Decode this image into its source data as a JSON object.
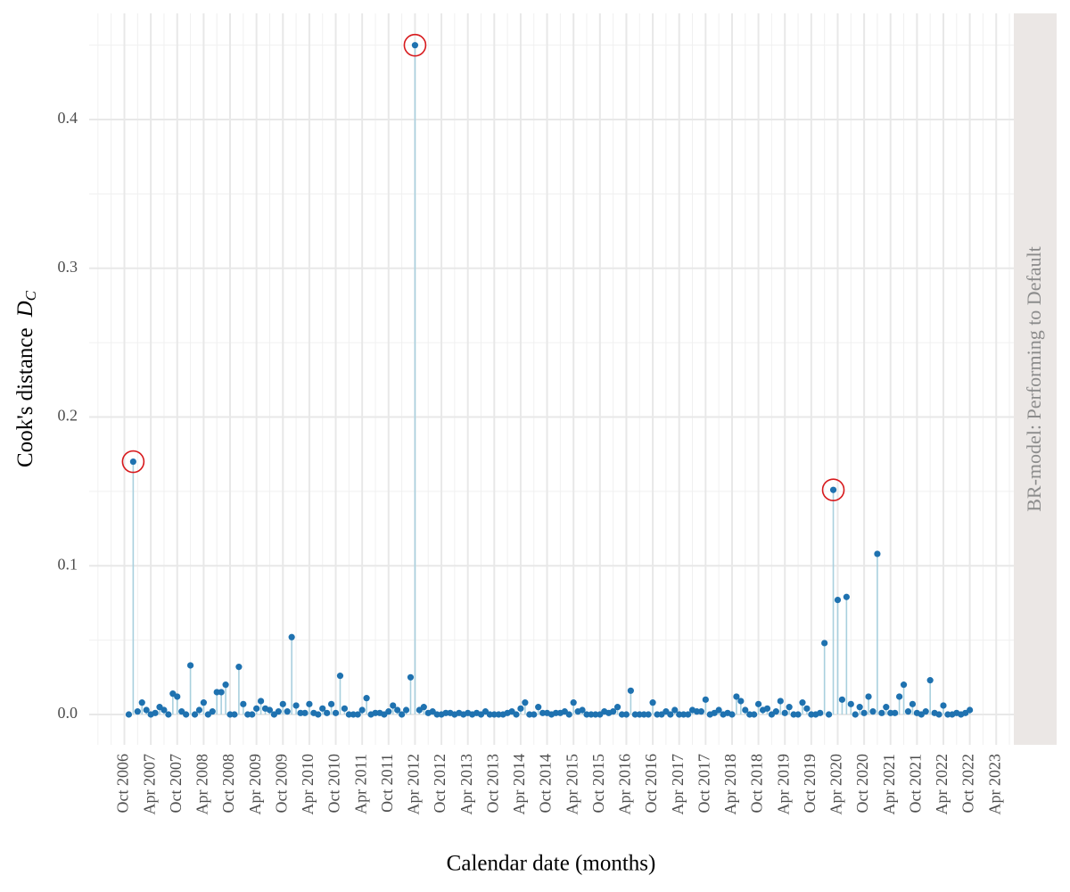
{
  "chart_data": {
    "type": "lollipop",
    "y_label": "Cook's distance",
    "y_label_symbol": "D",
    "y_label_subscript": "C",
    "x_label": "Calendar date (months)",
    "facet_label": "BR-model: Performing to Default",
    "point_color": "#1f72b0",
    "stem_color": "#a9d0de",
    "highlight_color": "#d7191c",
    "highlight_indices": [
      1,
      65,
      160
    ],
    "grid": true,
    "x": [
      "2006-11",
      "2006-12",
      "2007-01",
      "2007-02",
      "2007-03",
      "2007-04",
      "2007-05",
      "2007-06",
      "2007-07",
      "2007-08",
      "2007-09",
      "2007-10",
      "2007-11",
      "2007-12",
      "2008-01",
      "2008-02",
      "2008-03",
      "2008-04",
      "2008-05",
      "2008-06",
      "2008-07",
      "2008-08",
      "2008-09",
      "2008-10",
      "2008-11",
      "2008-12",
      "2009-01",
      "2009-02",
      "2009-03",
      "2009-04",
      "2009-05",
      "2009-06",
      "2009-07",
      "2009-08",
      "2009-09",
      "2009-10",
      "2009-11",
      "2009-12",
      "2010-01",
      "2010-02",
      "2010-03",
      "2010-04",
      "2010-05",
      "2010-06",
      "2010-07",
      "2010-08",
      "2010-09",
      "2010-10",
      "2010-11",
      "2010-12",
      "2011-01",
      "2011-02",
      "2011-03",
      "2011-04",
      "2011-05",
      "2011-06",
      "2011-07",
      "2011-08",
      "2011-09",
      "2011-10",
      "2011-11",
      "2011-12",
      "2012-01",
      "2012-02",
      "2012-03",
      "2012-04",
      "2012-05",
      "2012-06",
      "2012-07",
      "2012-08",
      "2012-09",
      "2012-10",
      "2012-11",
      "2012-12",
      "2013-01",
      "2013-02",
      "2013-03",
      "2013-04",
      "2013-05",
      "2013-06",
      "2013-07",
      "2013-08",
      "2013-09",
      "2013-10",
      "2013-11",
      "2013-12",
      "2014-01",
      "2014-02",
      "2014-03",
      "2014-04",
      "2014-05",
      "2014-06",
      "2014-07",
      "2014-08",
      "2014-09",
      "2014-10",
      "2014-11",
      "2014-12",
      "2015-01",
      "2015-02",
      "2015-03",
      "2015-04",
      "2015-05",
      "2015-06",
      "2015-07",
      "2015-08",
      "2015-09",
      "2015-10",
      "2015-11",
      "2015-12",
      "2016-01",
      "2016-02",
      "2016-03",
      "2016-04",
      "2016-05",
      "2016-06",
      "2016-07",
      "2016-08",
      "2016-09",
      "2016-10",
      "2016-11",
      "2016-12",
      "2017-01",
      "2017-02",
      "2017-03",
      "2017-04",
      "2017-05",
      "2017-06",
      "2017-07",
      "2017-08",
      "2017-09",
      "2017-10",
      "2017-11",
      "2017-12",
      "2018-01",
      "2018-02",
      "2018-03",
      "2018-04",
      "2018-05",
      "2018-06",
      "2018-07",
      "2018-08",
      "2018-09",
      "2018-10",
      "2018-11",
      "2018-12",
      "2019-01",
      "2019-02",
      "2019-03",
      "2019-04",
      "2019-05",
      "2019-06",
      "2019-07",
      "2019-08",
      "2019-09",
      "2019-10",
      "2019-11",
      "2019-12",
      "2020-01",
      "2020-02",
      "2020-03",
      "2020-04",
      "2020-05",
      "2020-06",
      "2020-07",
      "2020-08",
      "2020-09",
      "2020-10",
      "2020-11",
      "2020-12",
      "2021-01",
      "2021-02",
      "2021-03",
      "2021-04",
      "2021-05",
      "2021-06",
      "2021-07",
      "2021-08",
      "2021-09",
      "2021-10",
      "2021-11",
      "2021-12",
      "2022-01",
      "2022-02",
      "2022-03",
      "2022-04",
      "2022-05",
      "2022-06",
      "2022-07",
      "2022-08",
      "2022-09",
      "2022-10"
    ],
    "values": [
      0.0,
      0.17,
      0.002,
      0.008,
      0.003,
      0.0,
      0.001,
      0.005,
      0.003,
      0.0,
      0.014,
      0.012,
      0.002,
      0.0,
      0.033,
      0.0,
      0.003,
      0.008,
      0.0,
      0.002,
      0.015,
      0.015,
      0.02,
      0.0,
      0.0,
      0.032,
      0.007,
      0.0,
      0.0,
      0.004,
      0.009,
      0.004,
      0.003,
      0.0,
      0.002,
      0.007,
      0.002,
      0.052,
      0.006,
      0.001,
      0.001,
      0.007,
      0.001,
      0.0,
      0.004,
      0.001,
      0.007,
      0.001,
      0.026,
      0.004,
      0.0,
      0.0,
      0.0,
      0.003,
      0.011,
      0.0,
      0.001,
      0.001,
      0.0,
      0.002,
      0.006,
      0.003,
      0.0,
      0.003,
      0.025,
      0.45,
      0.003,
      0.005,
      0.001,
      0.002,
      0.0,
      0.0,
      0.001,
      0.001,
      0.0,
      0.001,
      0.0,
      0.001,
      0.0,
      0.001,
      0.0,
      0.002,
      0.0,
      0.0,
      0.0,
      0.0,
      0.001,
      0.002,
      0.0,
      0.004,
      0.008,
      0.0,
      0.0,
      0.005,
      0.001,
      0.001,
      0.0,
      0.001,
      0.001,
      0.002,
      0.0,
      0.008,
      0.002,
      0.003,
      0.0,
      0.0,
      0.0,
      0.0,
      0.002,
      0.001,
      0.002,
      0.005,
      0.0,
      0.0,
      0.016,
      0.0,
      0.0,
      0.0,
      0.0,
      0.008,
      0.0,
      0.0,
      0.002,
      0.0,
      0.003,
      0.0,
      0.0,
      0.0,
      0.003,
      0.002,
      0.002,
      0.01,
      0.0,
      0.001,
      0.003,
      0.0,
      0.001,
      0.0,
      0.012,
      0.009,
      0.003,
      0.0,
      0.0,
      0.007,
      0.003,
      0.004,
      0.0,
      0.002,
      0.009,
      0.001,
      0.005,
      0.0,
      0.0,
      0.008,
      0.004,
      0.0,
      0.0,
      0.001,
      0.048,
      0.0,
      0.151,
      0.077,
      0.01,
      0.079,
      0.007,
      0.0,
      0.005,
      0.001,
      0.012,
      0.002,
      0.108,
      0.001,
      0.005,
      0.001,
      0.001,
      0.012,
      0.02,
      0.002,
      0.007,
      0.001,
      0.0,
      0.002,
      0.023,
      0.001,
      0.0,
      0.006,
      0.0,
      0.0,
      0.001,
      0.0,
      0.001,
      0.003
    ],
    "xlim": [
      "2006-02",
      "2023-08"
    ],
    "xticks": [
      {
        "value": "2006-10",
        "label": "Oct 2006"
      },
      {
        "value": "2007-04",
        "label": "Apr 2007"
      },
      {
        "value": "2007-10",
        "label": "Oct 2007"
      },
      {
        "value": "2008-04",
        "label": "Apr 2008"
      },
      {
        "value": "2008-10",
        "label": "Oct 2008"
      },
      {
        "value": "2009-04",
        "label": "Apr 2009"
      },
      {
        "value": "2009-10",
        "label": "Oct 2009"
      },
      {
        "value": "2010-04",
        "label": "Apr 2010"
      },
      {
        "value": "2010-10",
        "label": "Oct 2010"
      },
      {
        "value": "2011-04",
        "label": "Apr 2011"
      },
      {
        "value": "2011-10",
        "label": "Oct 2011"
      },
      {
        "value": "2012-04",
        "label": "Apr 2012"
      },
      {
        "value": "2012-10",
        "label": "Oct 2012"
      },
      {
        "value": "2013-04",
        "label": "Apr 2013"
      },
      {
        "value": "2013-10",
        "label": "Oct 2013"
      },
      {
        "value": "2014-04",
        "label": "Apr 2014"
      },
      {
        "value": "2014-10",
        "label": "Oct 2014"
      },
      {
        "value": "2015-04",
        "label": "Apr 2015"
      },
      {
        "value": "2015-10",
        "label": "Oct 2015"
      },
      {
        "value": "2016-04",
        "label": "Apr 2016"
      },
      {
        "value": "2016-10",
        "label": "Oct 2016"
      },
      {
        "value": "2017-04",
        "label": "Apr 2017"
      },
      {
        "value": "2017-10",
        "label": "Oct 2017"
      },
      {
        "value": "2018-04",
        "label": "Apr 2018"
      },
      {
        "value": "2018-10",
        "label": "Oct 2018"
      },
      {
        "value": "2019-04",
        "label": "Apr 2019"
      },
      {
        "value": "2019-10",
        "label": "Oct 2019"
      },
      {
        "value": "2020-04",
        "label": "Apr 2020"
      },
      {
        "value": "2020-10",
        "label": "Oct 2020"
      },
      {
        "value": "2021-04",
        "label": "Apr 2021"
      },
      {
        "value": "2021-10",
        "label": "Oct 2021"
      },
      {
        "value": "2022-04",
        "label": "Apr 2022"
      },
      {
        "value": "2022-10",
        "label": "Oct 2022"
      },
      {
        "value": "2023-04",
        "label": "Apr 2023"
      }
    ],
    "ylim": [
      -0.0204,
      0.4714
    ],
    "yticks": [
      {
        "value": 0,
        "label": "0.0"
      },
      0.1,
      0.2,
      0.3,
      0.4
    ]
  }
}
